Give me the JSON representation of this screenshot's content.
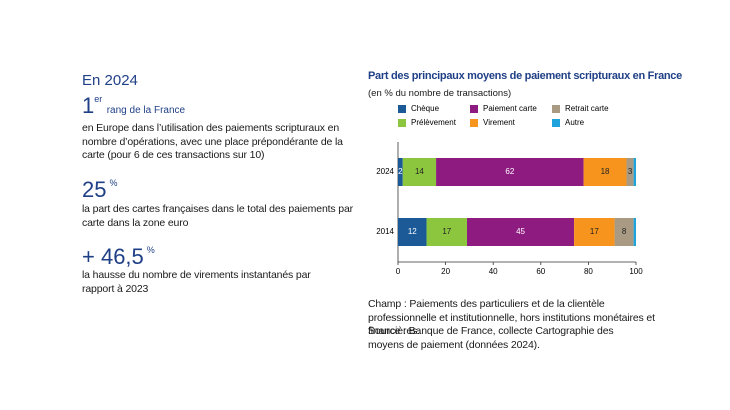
{
  "heading": "En 2024",
  "highlights": [
    {
      "value": "1",
      "unit": "er",
      "label": "rang de la France",
      "text": "en Europe dans l’utilisation des paiements scripturaux en nombre d’opérations, avec une place prépondérante de la carte (pour 6 de ces transactions sur 10)"
    },
    {
      "value": "25",
      "unit": "%",
      "text": "la part des cartes françaises dans le total des paiements par carte dans la zone euro"
    },
    {
      "value": "+ 46,5",
      "unit": "%",
      "text": "la hausse du nombre de virements instantanés par rapport à 2023"
    }
  ],
  "chart_data": {
    "type": "stacked-barh",
    "title": "Part des principaux moyens de paiement scripturaux en France",
    "subtitle": "(en % du nombre de transactions)",
    "categories": [
      "2024",
      "2014"
    ],
    "series": [
      {
        "name": "Chèque",
        "color": "#1b5a97",
        "values": [
          2,
          12
        ]
      },
      {
        "name": "Prélèvement",
        "color": "#8cc63f",
        "values": [
          14,
          17
        ]
      },
      {
        "name": "Paiement carte",
        "color": "#8e1b80",
        "values": [
          62,
          45
        ]
      },
      {
        "name": "Virement",
        "color": "#f7941d",
        "values": [
          18,
          17
        ]
      },
      {
        "name": "Retrait carte",
        "color": "#a99b83",
        "values": [
          3,
          8
        ]
      },
      {
        "name": "Autre",
        "color": "#1ea3dd",
        "values": [
          1,
          1
        ]
      }
    ],
    "xlim": [
      0,
      100
    ],
    "xticks": [
      0,
      20,
      40,
      60,
      80,
      100
    ],
    "grid": false,
    "note": "Champ : Paiements des particuliers et de la clientèle professionnelle et institutionnelle, hors institutions monétaires et financières.",
    "source": "Source : Banque de France, collecte Cartographie des moyens de paiement (données 2024)."
  }
}
